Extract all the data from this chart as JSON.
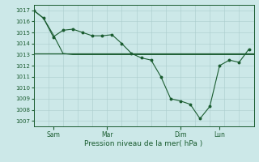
{
  "background_color": "#cce8e8",
  "grid_color": "#aacccc",
  "line_color": "#1a5c30",
  "title": "Pression niveau de la mer( hPa )",
  "ylim": [
    1006.5,
    1017.5
  ],
  "yticks": [
    1007,
    1008,
    1009,
    1010,
    1011,
    1012,
    1013,
    1014,
    1015,
    1016,
    1017
  ],
  "day_labels": [
    "Sam",
    "Mar",
    "Dim",
    "Lun"
  ],
  "day_positions": [
    8,
    30,
    60,
    76
  ],
  "xlim": [
    0,
    90
  ],
  "line1_x": [
    0,
    4,
    8,
    12,
    16,
    20,
    24,
    28,
    32,
    36,
    40,
    44,
    48,
    52,
    56,
    60,
    64,
    68,
    72,
    76,
    80,
    84,
    88
  ],
  "line1_y": [
    1017.0,
    1016.3,
    1014.6,
    1015.2,
    1015.3,
    1015.0,
    1014.7,
    1014.7,
    1014.8,
    1014.0,
    1013.1,
    1012.7,
    1012.5,
    1011.0,
    1009.0,
    1008.8,
    1008.5,
    1007.2,
    1008.3,
    1012.0,
    1012.5,
    1012.3,
    1013.5
  ],
  "line2_x": [
    0,
    90
  ],
  "line2_y": [
    1013.1,
    1013.1
  ],
  "line3_x": [
    0,
    4,
    8,
    12,
    16,
    20,
    90
  ],
  "line3_y": [
    1017.0,
    1016.3,
    1014.8,
    1013.1,
    1013.0,
    1013.0,
    1013.0
  ]
}
